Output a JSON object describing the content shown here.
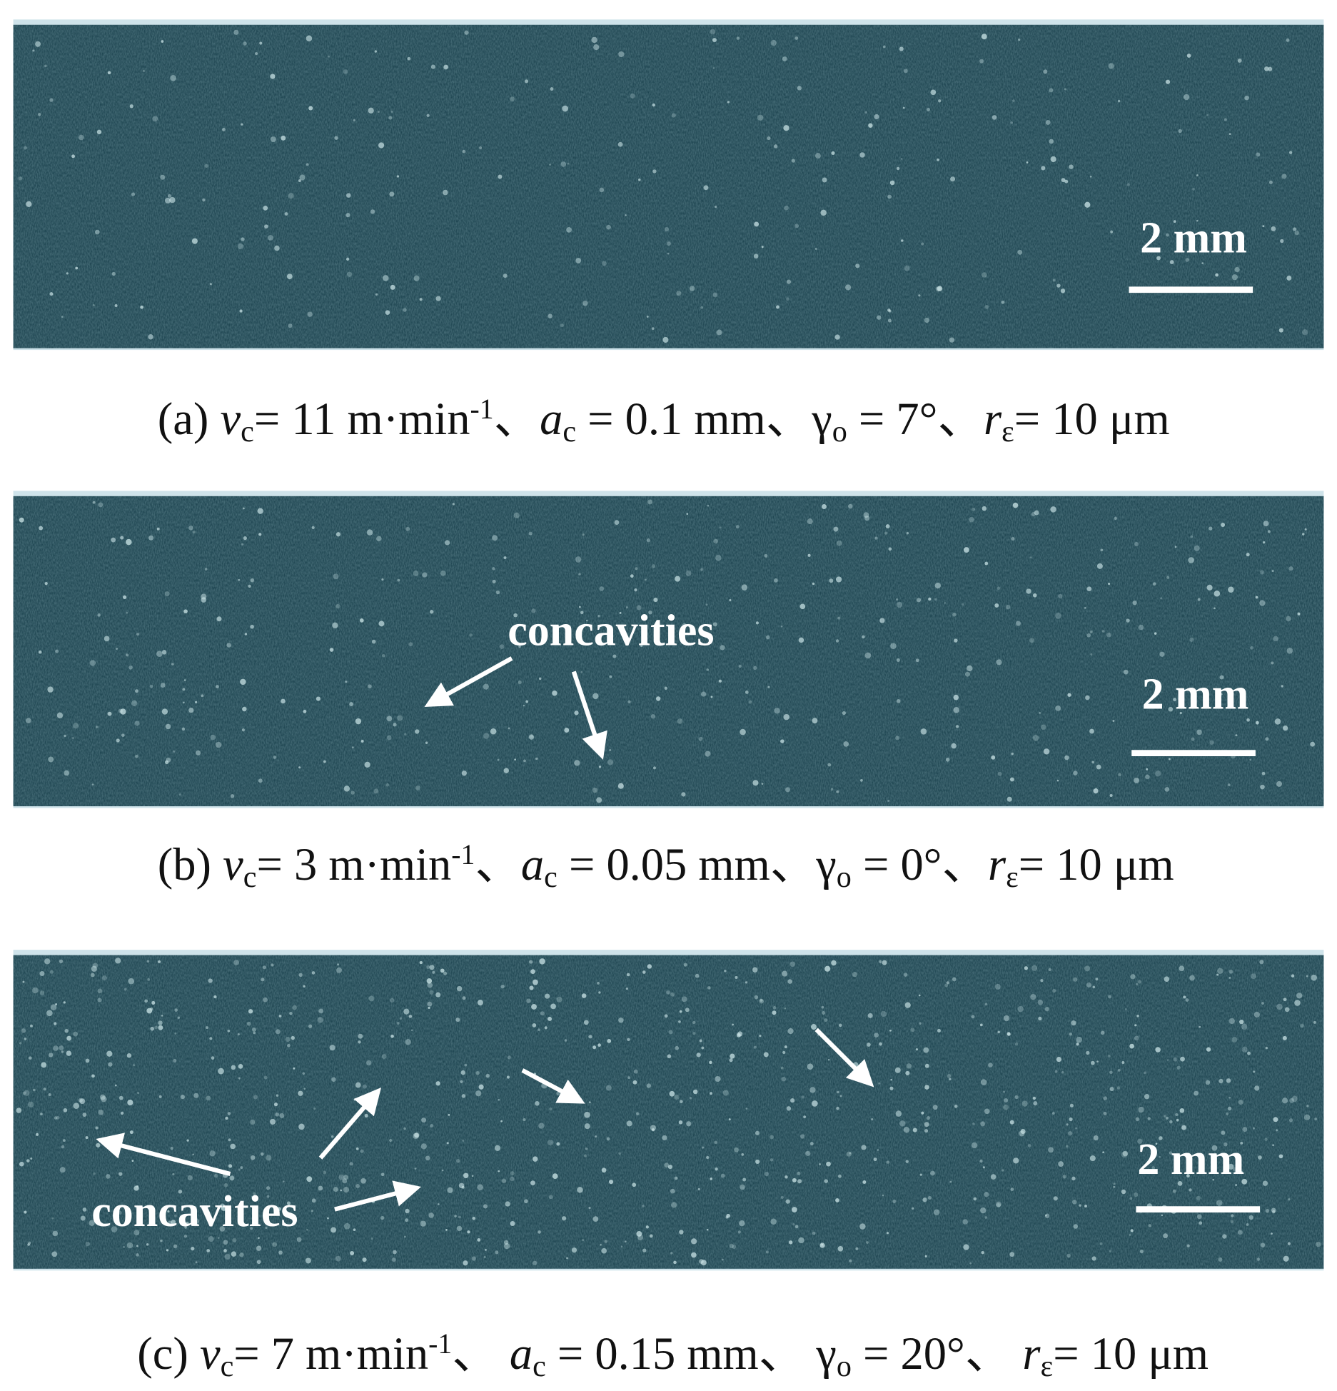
{
  "panels": [
    {
      "caption": [
        "(a) ",
        "v",
        "c",
        "= 11 m·min",
        "-1",
        "、",
        "a",
        "c",
        " = 0.1 mm、",
        "γ",
        "o",
        " = 7°、",
        "r",
        "ε",
        "= 10 μm"
      ],
      "scale_bar": "2 mm"
    },
    {
      "caption": [
        "(b) ",
        "v",
        "c",
        "= 3 m·min",
        "-1",
        "、",
        "a",
        "c",
        " = 0.05 mm、",
        "γ",
        "o",
        " = 0°、",
        "r",
        "ε",
        "= 10 μm"
      ],
      "scale_bar": "2 mm",
      "annotation": "concavities"
    },
    {
      "caption": [
        "(c) ",
        "v",
        "c",
        "= 7 m·min",
        "-1",
        "、 ",
        "a",
        "c",
        " = 0.15 mm、 ",
        "γ",
        "o",
        " = 20°、 ",
        "r",
        "ε",
        "= 10 μm"
      ],
      "scale_bar": "2 mm",
      "annotation": "concavities"
    }
  ]
}
